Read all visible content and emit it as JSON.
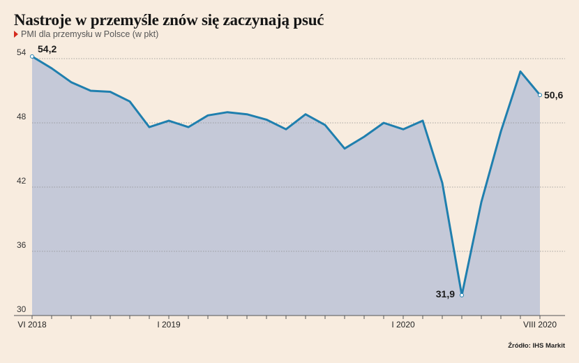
{
  "header": {
    "title": "Nastroje w przemyśle znów się zaczynają psuć",
    "subtitle": "PMI dla przemysłu w Polsce (w pkt)"
  },
  "source": "Źródło: IHS Markit",
  "colors": {
    "background": "#f8ecdf",
    "line": "#1f7fae",
    "area": "#c5c9d8",
    "marker": "#d42b1e"
  },
  "chart_data": {
    "type": "area",
    "title": "Nastroje w przemyśle znów się zaczynają psuć",
    "subtitle": "PMI dla przemysłu w Polsce (w pkt)",
    "x": [
      "2018-06",
      "2018-07",
      "2018-08",
      "2018-09",
      "2018-10",
      "2018-11",
      "2018-12",
      "2019-01",
      "2019-02",
      "2019-03",
      "2019-04",
      "2019-05",
      "2019-06",
      "2019-07",
      "2019-08",
      "2019-09",
      "2019-10",
      "2019-11",
      "2019-12",
      "2020-01",
      "2020-02",
      "2020-03",
      "2020-04",
      "2020-05",
      "2020-06",
      "2020-07",
      "2020-08"
    ],
    "series": [
      {
        "values": [
          54.2,
          53.1,
          51.8,
          51.0,
          50.9,
          50.0,
          47.6,
          48.2,
          47.6,
          48.7,
          49.0,
          48.8,
          48.3,
          47.4,
          48.8,
          47.8,
          45.6,
          46.7,
          48.0,
          47.4,
          48.2,
          42.4,
          31.9,
          40.6,
          47.2,
          52.8,
          50.6
        ]
      }
    ],
    "ylim": [
      30,
      55
    ],
    "yticks": [
      "54",
      "48",
      "42",
      "36",
      "30"
    ],
    "ytick_values": [
      54,
      48,
      42,
      36,
      30
    ],
    "xtick_labels": [
      {
        "x": "2018-06",
        "label": "VI 2018"
      },
      {
        "x": "2019-01",
        "label": "I 2019"
      },
      {
        "x": "2020-01",
        "label": "I 2020"
      },
      {
        "x": "2020-08",
        "label": "VIII 2020"
      }
    ],
    "annotations": [
      {
        "x": "2018-06",
        "label": "54,2"
      },
      {
        "x": "2020-04",
        "label": "31,9"
      },
      {
        "x": "2020-08",
        "label": "50,6"
      }
    ],
    "grid": true,
    "xlabel": "",
    "ylabel": ""
  }
}
